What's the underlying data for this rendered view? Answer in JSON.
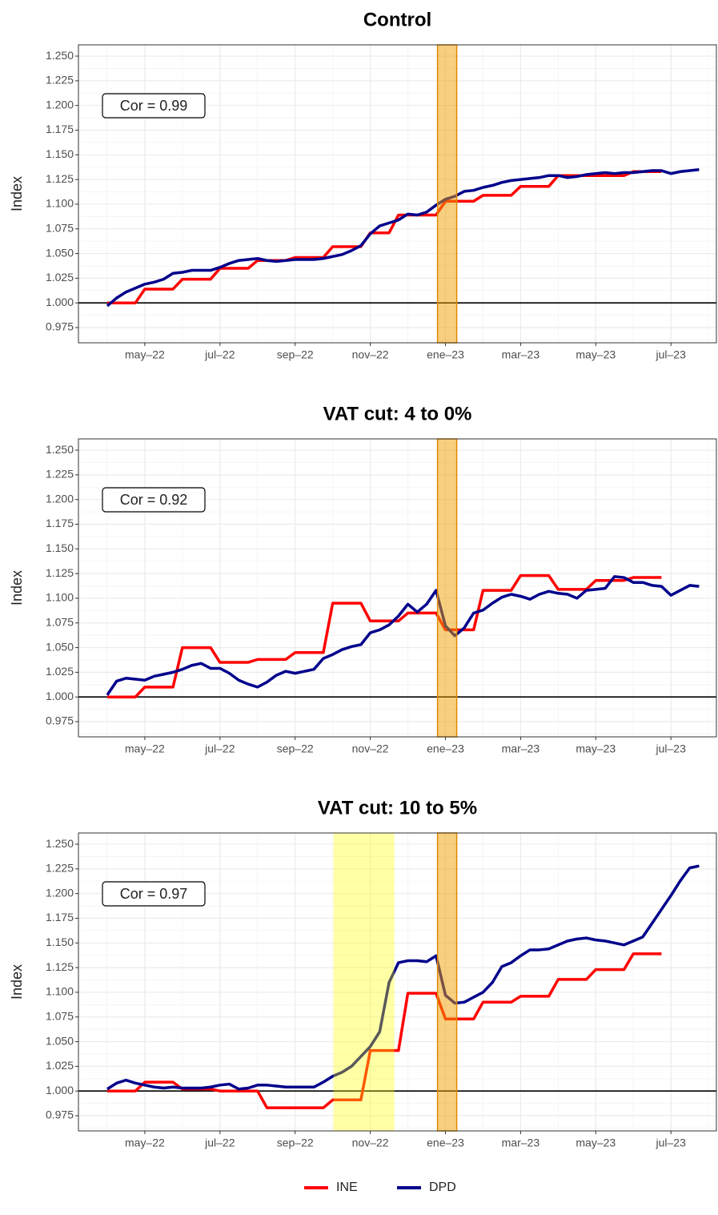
{
  "chart_data": [
    {
      "type": "line",
      "title": "Control",
      "ylabel": "Index",
      "annotation": "Cor = 0.99",
      "x": [
        4,
        4.25,
        4.5,
        4.75,
        5,
        5.25,
        5.5,
        5.75,
        6,
        6.25,
        6.5,
        6.75,
        7,
        7.25,
        7.5,
        7.75,
        8,
        8.25,
        8.5,
        8.75,
        9,
        9.25,
        9.5,
        9.75,
        10,
        10.25,
        10.5,
        10.75,
        11,
        11.25,
        11.5,
        11.75,
        12,
        12.25,
        12.5,
        12.75,
        13,
        13.25,
        13.5,
        13.75,
        14,
        14.25,
        14.5,
        14.75,
        15,
        15.25,
        15.5,
        15.75,
        16,
        16.25,
        16.5,
        16.75,
        17,
        17.25,
        17.5,
        17.75,
        18,
        18.25,
        18.5,
        18.75,
        19,
        19.25,
        19.5,
        19.75
      ],
      "series": [
        {
          "name": "INE",
          "color": "#ff0000",
          "values": [
            1.0,
            1.0,
            1.0,
            1.0,
            1.014,
            1.014,
            1.014,
            1.014,
            1.024,
            1.024,
            1.024,
            1.024,
            1.035,
            1.035,
            1.035,
            1.035,
            1.043,
            1.043,
            1.043,
            1.043,
            1.046,
            1.046,
            1.046,
            1.046,
            1.057,
            1.057,
            1.057,
            1.057,
            1.071,
            1.071,
            1.071,
            1.089,
            1.089,
            1.089,
            1.089,
            1.089,
            1.103,
            1.103,
            1.103,
            1.103,
            1.109,
            1.109,
            1.109,
            1.109,
            1.118,
            1.118,
            1.118,
            1.118,
            1.129,
            1.129,
            1.129,
            1.129,
            1.129,
            1.129,
            1.129,
            1.129,
            1.133,
            1.133,
            1.133,
            1.133,
            null,
            null,
            null,
            null
          ]
        },
        {
          "name": "DPD",
          "color": "#00008b",
          "values": [
            0.997,
            1.005,
            1.011,
            1.015,
            1.019,
            1.021,
            1.024,
            1.03,
            1.031,
            1.033,
            1.033,
            1.033,
            1.036,
            1.04,
            1.043,
            1.044,
            1.045,
            1.043,
            1.042,
            1.043,
            1.044,
            1.044,
            1.044,
            1.045,
            1.047,
            1.049,
            1.053,
            1.058,
            1.07,
            1.078,
            1.081,
            1.084,
            1.09,
            1.089,
            1.092,
            1.099,
            1.105,
            1.108,
            1.113,
            1.114,
            1.117,
            1.119,
            1.122,
            1.124,
            1.125,
            1.126,
            1.127,
            1.129,
            1.129,
            1.127,
            1.128,
            1.13,
            1.131,
            1.132,
            1.131,
            1.132,
            1.132,
            1.133,
            1.134,
            1.134,
            1.131,
            1.133,
            1.134,
            1.135
          ]
        }
      ],
      "bands": [
        {
          "xlim": [
            12.79,
            13.3
          ],
          "color": "#f0a000"
        }
      ],
      "hline": 1,
      "xlim": [
        3.234,
        20.21
      ],
      "xticks": [
        {
          "value": 5,
          "label": "may–22"
        },
        {
          "value": 7,
          "label": "jul–22"
        },
        {
          "value": 9,
          "label": "sep–22"
        },
        {
          "value": 11,
          "label": "nov–22"
        },
        {
          "value": 13,
          "label": "ene–23"
        },
        {
          "value": 15,
          "label": "mar–23"
        },
        {
          "value": 17,
          "label": "may–23"
        },
        {
          "value": 19,
          "label": "jul–23"
        }
      ],
      "ylim": [
        0.9596,
        1.2614
      ],
      "yticks": [
        {
          "value": 0.975,
          "label": "0.975"
        },
        {
          "value": 1,
          "label": "1.000"
        },
        {
          "value": 1.025,
          "label": "1.025"
        },
        {
          "value": 1.05,
          "label": "1.050"
        },
        {
          "value": 1.075,
          "label": "1.075"
        },
        {
          "value": 1.1,
          "label": "1.100"
        },
        {
          "value": 1.125,
          "label": "1.125"
        },
        {
          "value": 1.15,
          "label": "1.150"
        },
        {
          "value": 1.175,
          "label": "1.175"
        },
        {
          "value": 1.2,
          "label": "1.200"
        },
        {
          "value": 1.225,
          "label": "1.225"
        },
        {
          "value": 1.25,
          "label": "1.250"
        }
      ],
      "grid": true,
      "legend": "bottom"
    },
    {
      "type": "line",
      "title": "VAT cut: 4 to 0%",
      "ylabel": "Index",
      "annotation": "Cor = 0.92",
      "x": [
        4,
        4.25,
        4.5,
        4.75,
        5,
        5.25,
        5.5,
        5.75,
        6,
        6.25,
        6.5,
        6.75,
        7,
        7.25,
        7.5,
        7.75,
        8,
        8.25,
        8.5,
        8.75,
        9,
        9.25,
        9.5,
        9.75,
        10,
        10.25,
        10.5,
        10.75,
        11,
        11.25,
        11.5,
        11.75,
        12,
        12.25,
        12.5,
        12.75,
        13,
        13.25,
        13.5,
        13.75,
        14,
        14.25,
        14.5,
        14.75,
        15,
        15.25,
        15.5,
        15.75,
        16,
        16.25,
        16.5,
        16.75,
        17,
        17.25,
        17.5,
        17.75,
        18,
        18.25,
        18.5,
        18.75,
        19,
        19.25,
        19.5,
        19.75
      ],
      "series": [
        {
          "name": "INE",
          "color": "#ff0000",
          "values": [
            1.0,
            1.0,
            1.0,
            1.0,
            1.01,
            1.01,
            1.01,
            1.01,
            1.05,
            1.05,
            1.05,
            1.05,
            1.035,
            1.035,
            1.035,
            1.035,
            1.038,
            1.038,
            1.038,
            1.038,
            1.045,
            1.045,
            1.045,
            1.045,
            1.095,
            1.095,
            1.095,
            1.095,
            1.077,
            1.077,
            1.077,
            1.077,
            1.085,
            1.085,
            1.085,
            1.085,
            1.068,
            1.068,
            1.068,
            1.068,
            1.108,
            1.108,
            1.108,
            1.108,
            1.123,
            1.123,
            1.123,
            1.123,
            1.109,
            1.109,
            1.109,
            1.109,
            1.118,
            1.118,
            1.118,
            1.118,
            1.121,
            1.121,
            1.121,
            1.121,
            null,
            null,
            null,
            null
          ]
        },
        {
          "name": "DPD",
          "color": "#00008b",
          "values": [
            1.002,
            1.016,
            1.019,
            1.018,
            1.017,
            1.021,
            1.023,
            1.025,
            1.028,
            1.032,
            1.034,
            1.029,
            1.029,
            1.024,
            1.017,
            1.013,
            1.01,
            1.015,
            1.022,
            1.026,
            1.024,
            1.026,
            1.028,
            1.039,
            1.043,
            1.048,
            1.051,
            1.053,
            1.065,
            1.068,
            1.073,
            1.082,
            1.094,
            1.086,
            1.094,
            1.108,
            1.072,
            1.062,
            1.07,
            1.085,
            1.088,
            1.095,
            1.101,
            1.104,
            1.102,
            1.099,
            1.104,
            1.107,
            1.105,
            1.104,
            1.1,
            1.108,
            1.109,
            1.11,
            1.122,
            1.121,
            1.116,
            1.116,
            1.113,
            1.112,
            1.103,
            1.108,
            1.113,
            1.112
          ]
        }
      ],
      "bands": [
        {
          "xlim": [
            12.79,
            13.3
          ],
          "color": "#f0a000"
        }
      ],
      "hline": 1,
      "xlim": [
        3.234,
        20.21
      ],
      "xticks": [
        {
          "value": 5,
          "label": "may–22"
        },
        {
          "value": 7,
          "label": "jul–22"
        },
        {
          "value": 9,
          "label": "sep–22"
        },
        {
          "value": 11,
          "label": "nov–22"
        },
        {
          "value": 13,
          "label": "ene–23"
        },
        {
          "value": 15,
          "label": "mar–23"
        },
        {
          "value": 17,
          "label": "may–23"
        },
        {
          "value": 19,
          "label": "jul–23"
        }
      ],
      "ylim": [
        0.9596,
        1.2614
      ],
      "yticks": [
        {
          "value": 0.975,
          "label": "0.975"
        },
        {
          "value": 1,
          "label": "1.000"
        },
        {
          "value": 1.025,
          "label": "1.025"
        },
        {
          "value": 1.05,
          "label": "1.050"
        },
        {
          "value": 1.075,
          "label": "1.075"
        },
        {
          "value": 1.1,
          "label": "1.100"
        },
        {
          "value": 1.125,
          "label": "1.125"
        },
        {
          "value": 1.15,
          "label": "1.150"
        },
        {
          "value": 1.175,
          "label": "1.175"
        },
        {
          "value": 1.2,
          "label": "1.200"
        },
        {
          "value": 1.225,
          "label": "1.225"
        },
        {
          "value": 1.25,
          "label": "1.250"
        }
      ],
      "grid": true
    },
    {
      "type": "line",
      "title": "VAT cut: 10 to 5%",
      "ylabel": "Index",
      "annotation": "Cor = 0.97",
      "x": [
        4,
        4.25,
        4.5,
        4.75,
        5,
        5.25,
        5.5,
        5.75,
        6,
        6.25,
        6.5,
        6.75,
        7,
        7.25,
        7.5,
        7.75,
        8,
        8.25,
        8.5,
        8.75,
        9,
        9.25,
        9.5,
        9.75,
        10,
        10.25,
        10.5,
        10.75,
        11,
        11.25,
        11.5,
        11.75,
        12,
        12.25,
        12.5,
        12.75,
        13,
        13.25,
        13.5,
        13.75,
        14,
        14.25,
        14.5,
        14.75,
        15,
        15.25,
        15.5,
        15.75,
        16,
        16.25,
        16.5,
        16.75,
        17,
        17.25,
        17.5,
        17.75,
        18,
        18.25,
        18.5,
        18.75,
        19,
        19.25,
        19.5,
        19.75
      ],
      "series": [
        {
          "name": "INE",
          "color": "#ff0000",
          "values": [
            1.0,
            1.0,
            1.0,
            1.0,
            1.009,
            1.009,
            1.009,
            1.009,
            1.002,
            1.002,
            1.002,
            1.002,
            1.0,
            1.0,
            1.0,
            1.0,
            1.0,
            0.983,
            0.983,
            0.983,
            0.983,
            0.983,
            0.983,
            0.983,
            0.991,
            0.991,
            0.991,
            0.991,
            1.041,
            1.041,
            1.041,
            1.041,
            1.099,
            1.099,
            1.099,
            1.099,
            1.073,
            1.073,
            1.073,
            1.073,
            1.09,
            1.09,
            1.09,
            1.09,
            1.096,
            1.096,
            1.096,
            1.096,
            1.113,
            1.113,
            1.113,
            1.113,
            1.123,
            1.123,
            1.123,
            1.123,
            1.139,
            1.139,
            1.139,
            1.139,
            null,
            null,
            null,
            null
          ]
        },
        {
          "name": "DPD",
          "color": "#00008b",
          "values": [
            1.002,
            1.008,
            1.011,
            1.008,
            1.006,
            1.004,
            1.003,
            1.004,
            1.003,
            1.003,
            1.003,
            1.004,
            1.006,
            1.007,
            1.002,
            1.003,
            1.006,
            1.006,
            1.005,
            1.004,
            1.004,
            1.004,
            1.004,
            1.009,
            1.015,
            1.019,
            1.025,
            1.035,
            1.045,
            1.06,
            1.11,
            1.13,
            1.132,
            1.132,
            1.131,
            1.137,
            1.097,
            1.089,
            1.09,
            1.095,
            1.1,
            1.11,
            1.126,
            1.13,
            1.137,
            1.143,
            1.143,
            1.144,
            1.148,
            1.152,
            1.154,
            1.155,
            1.153,
            1.152,
            1.15,
            1.148,
            1.152,
            1.156,
            1.17,
            1.184,
            1.198,
            1.213,
            1.226,
            1.228
          ]
        }
      ],
      "bands": [
        {
          "xlim": [
            10.02,
            11.64
          ],
          "color": "#ffff00"
        },
        {
          "xlim": [
            12.79,
            13.3
          ],
          "color": "#f0a000"
        }
      ],
      "hline": 1,
      "xlim": [
        3.234,
        20.21
      ],
      "xticks": [
        {
          "value": 5,
          "label": "may–22"
        },
        {
          "value": 7,
          "label": "jul–22"
        },
        {
          "value": 9,
          "label": "sep–22"
        },
        {
          "value": 11,
          "label": "nov–22"
        },
        {
          "value": 13,
          "label": "ene–23"
        },
        {
          "value": 15,
          "label": "mar–23"
        },
        {
          "value": 17,
          "label": "may–23"
        },
        {
          "value": 19,
          "label": "jul–23"
        }
      ],
      "ylim": [
        0.9596,
        1.2614
      ],
      "yticks": [
        {
          "value": 0.975,
          "label": "0.975"
        },
        {
          "value": 1,
          "label": "1.000"
        },
        {
          "value": 1.025,
          "label": "1.025"
        },
        {
          "value": 1.05,
          "label": "1.050"
        },
        {
          "value": 1.075,
          "label": "1.075"
        },
        {
          "value": 1.1,
          "label": "1.100"
        },
        {
          "value": 1.125,
          "label": "1.125"
        },
        {
          "value": 1.15,
          "label": "1.150"
        },
        {
          "value": 1.175,
          "label": "1.175"
        },
        {
          "value": 1.2,
          "label": "1.200"
        },
        {
          "value": 1.225,
          "label": "1.225"
        },
        {
          "value": 1.25,
          "label": "1.250"
        }
      ],
      "grid": true
    }
  ]
}
